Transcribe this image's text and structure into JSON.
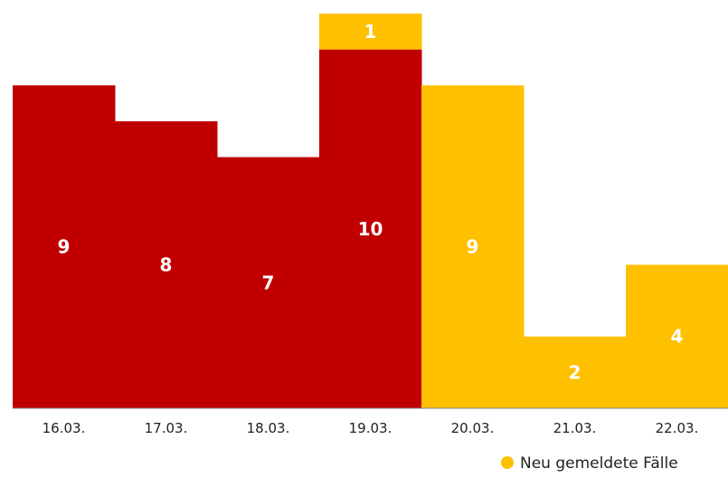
{
  "chart_data": {
    "type": "bar",
    "stacked": true,
    "categories": [
      "16.03.",
      "17.03.",
      "18.03.",
      "19.03.",
      "20.03.",
      "21.03.",
      "22.03."
    ],
    "series": [
      {
        "values": [
          9,
          8,
          7,
          10,
          0,
          0,
          0
        ],
        "color": "#c00000"
      },
      {
        "name": "Neu gemeldete Fälle",
        "values": [
          0,
          0,
          0,
          1,
          9,
          2,
          4
        ],
        "color": "#ffc000"
      }
    ],
    "ylim": [
      0,
      11
    ],
    "grid": false,
    "legend_position": "bottom-right",
    "title": "",
    "xlabel": "",
    "ylabel": ""
  },
  "legend": {
    "label": "Neu gemeldete Fälle"
  }
}
